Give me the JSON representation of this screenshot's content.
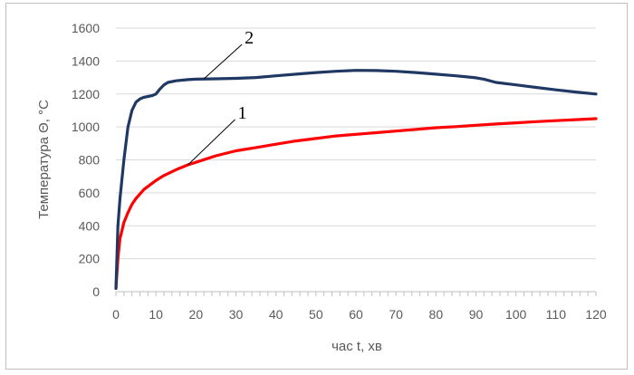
{
  "chart_data": {
    "type": "line",
    "xlabel": "час t, хв",
    "ylabel": "Температура Θ, °C",
    "xlim": [
      0,
      120
    ],
    "ylim": [
      0,
      1600
    ],
    "xticks": [
      "0",
      "10",
      "20",
      "30",
      "40",
      "50",
      "60",
      "70",
      "80",
      "90",
      "100",
      "110",
      "120"
    ],
    "yticks": [
      "0",
      "200",
      "400",
      "600",
      "800",
      "1000",
      "1200",
      "1400",
      "1600"
    ],
    "grid": "horizontal",
    "legend": "none",
    "series": [
      {
        "name": "1",
        "color": "#ff0000",
        "points": [
          [
            0,
            20
          ],
          [
            0.5,
            200
          ],
          [
            1,
            320
          ],
          [
            2,
            420
          ],
          [
            3,
            480
          ],
          [
            4,
            530
          ],
          [
            5,
            565
          ],
          [
            7,
            620
          ],
          [
            10,
            675
          ],
          [
            12,
            705
          ],
          [
            15,
            740
          ],
          [
            18,
            770
          ],
          [
            20,
            785
          ],
          [
            25,
            825
          ],
          [
            30,
            855
          ],
          [
            35,
            875
          ],
          [
            40,
            895
          ],
          [
            45,
            915
          ],
          [
            50,
            930
          ],
          [
            55,
            945
          ],
          [
            60,
            955
          ],
          [
            65,
            965
          ],
          [
            70,
            975
          ],
          [
            75,
            985
          ],
          [
            80,
            995
          ],
          [
            85,
            1002
          ],
          [
            90,
            1010
          ],
          [
            95,
            1018
          ],
          [
            100,
            1025
          ],
          [
            105,
            1032
          ],
          [
            110,
            1038
          ],
          [
            115,
            1044
          ],
          [
            120,
            1050
          ]
        ]
      },
      {
        "name": "2",
        "color": "#1f3864",
        "points": [
          [
            0,
            20
          ],
          [
            0.5,
            400
          ],
          [
            1,
            560
          ],
          [
            2,
            800
          ],
          [
            3,
            1000
          ],
          [
            4,
            1100
          ],
          [
            5,
            1150
          ],
          [
            6,
            1170
          ],
          [
            7,
            1180
          ],
          [
            8,
            1185
          ],
          [
            9,
            1190
          ],
          [
            10,
            1200
          ],
          [
            11,
            1230
          ],
          [
            12,
            1255
          ],
          [
            13,
            1270
          ],
          [
            15,
            1280
          ],
          [
            18,
            1287
          ],
          [
            20,
            1290
          ],
          [
            25,
            1292
          ],
          [
            30,
            1295
          ],
          [
            35,
            1300
          ],
          [
            40,
            1310
          ],
          [
            45,
            1320
          ],
          [
            50,
            1330
          ],
          [
            55,
            1338
          ],
          [
            60,
            1343
          ],
          [
            65,
            1342
          ],
          [
            70,
            1338
          ],
          [
            75,
            1330
          ],
          [
            80,
            1320
          ],
          [
            85,
            1310
          ],
          [
            90,
            1298
          ],
          [
            92,
            1290
          ],
          [
            95,
            1270
          ],
          [
            100,
            1255
          ],
          [
            105,
            1240
          ],
          [
            110,
            1225
          ],
          [
            115,
            1212
          ],
          [
            120,
            1200
          ]
        ]
      }
    ]
  },
  "callouts": [
    {
      "text": "2",
      "series": "2",
      "anchor_x": 22,
      "anchor_y": 1292
    },
    {
      "text": "1",
      "series": "1",
      "anchor_x": 18,
      "anchor_y": 770
    }
  ]
}
